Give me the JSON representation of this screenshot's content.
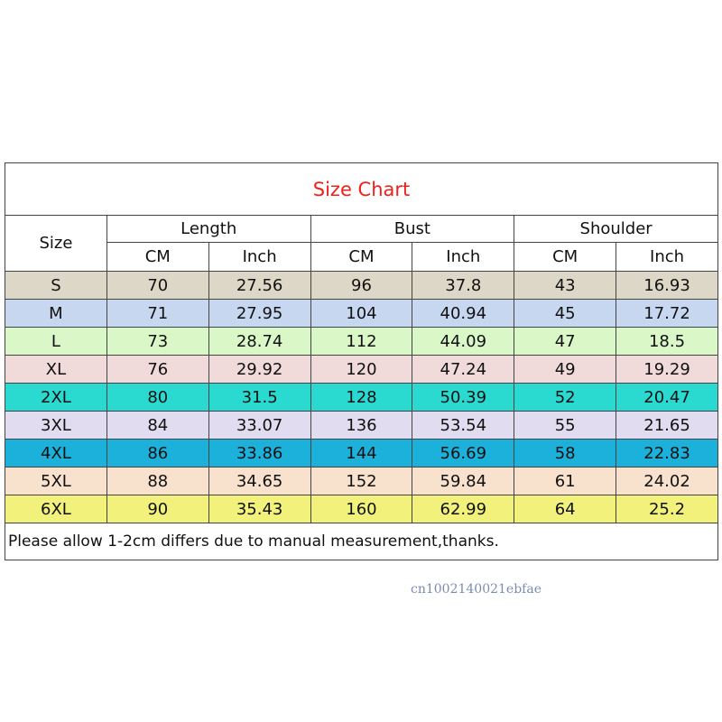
{
  "title": "Size Chart",
  "table": {
    "size_header": "Size",
    "groups": [
      {
        "name": "Length",
        "units": [
          "CM",
          "Inch"
        ]
      },
      {
        "name": "Bust",
        "units": [
          "CM",
          "Inch"
        ]
      },
      {
        "name": "Shoulder",
        "units": [
          "CM",
          "Inch"
        ]
      }
    ],
    "rows": [
      [
        "S",
        70,
        27.56,
        96,
        37.8,
        43,
        16.93
      ],
      [
        "M",
        71,
        27.95,
        104,
        40.94,
        45,
        17.72
      ],
      [
        "L",
        73,
        28.74,
        112,
        44.09,
        47,
        18.5
      ],
      [
        "XL",
        76,
        29.92,
        120,
        47.24,
        49,
        19.29
      ],
      [
        "2XL",
        80,
        31.5,
        128,
        50.39,
        52,
        20.47
      ],
      [
        "3XL",
        84,
        33.07,
        136,
        53.54,
        55,
        21.65
      ],
      [
        "4XL",
        86,
        33.86,
        144,
        56.69,
        58,
        22.83
      ],
      [
        "5XL",
        88,
        34.65,
        152,
        59.84,
        61,
        24.02
      ],
      [
        "6XL",
        90,
        35.43,
        160,
        62.99,
        64,
        25.2
      ]
    ]
  },
  "note": "Please allow 1-2cm differs due to manual measurement,thanks.",
  "watermark": "cn1002140021ebfae"
}
